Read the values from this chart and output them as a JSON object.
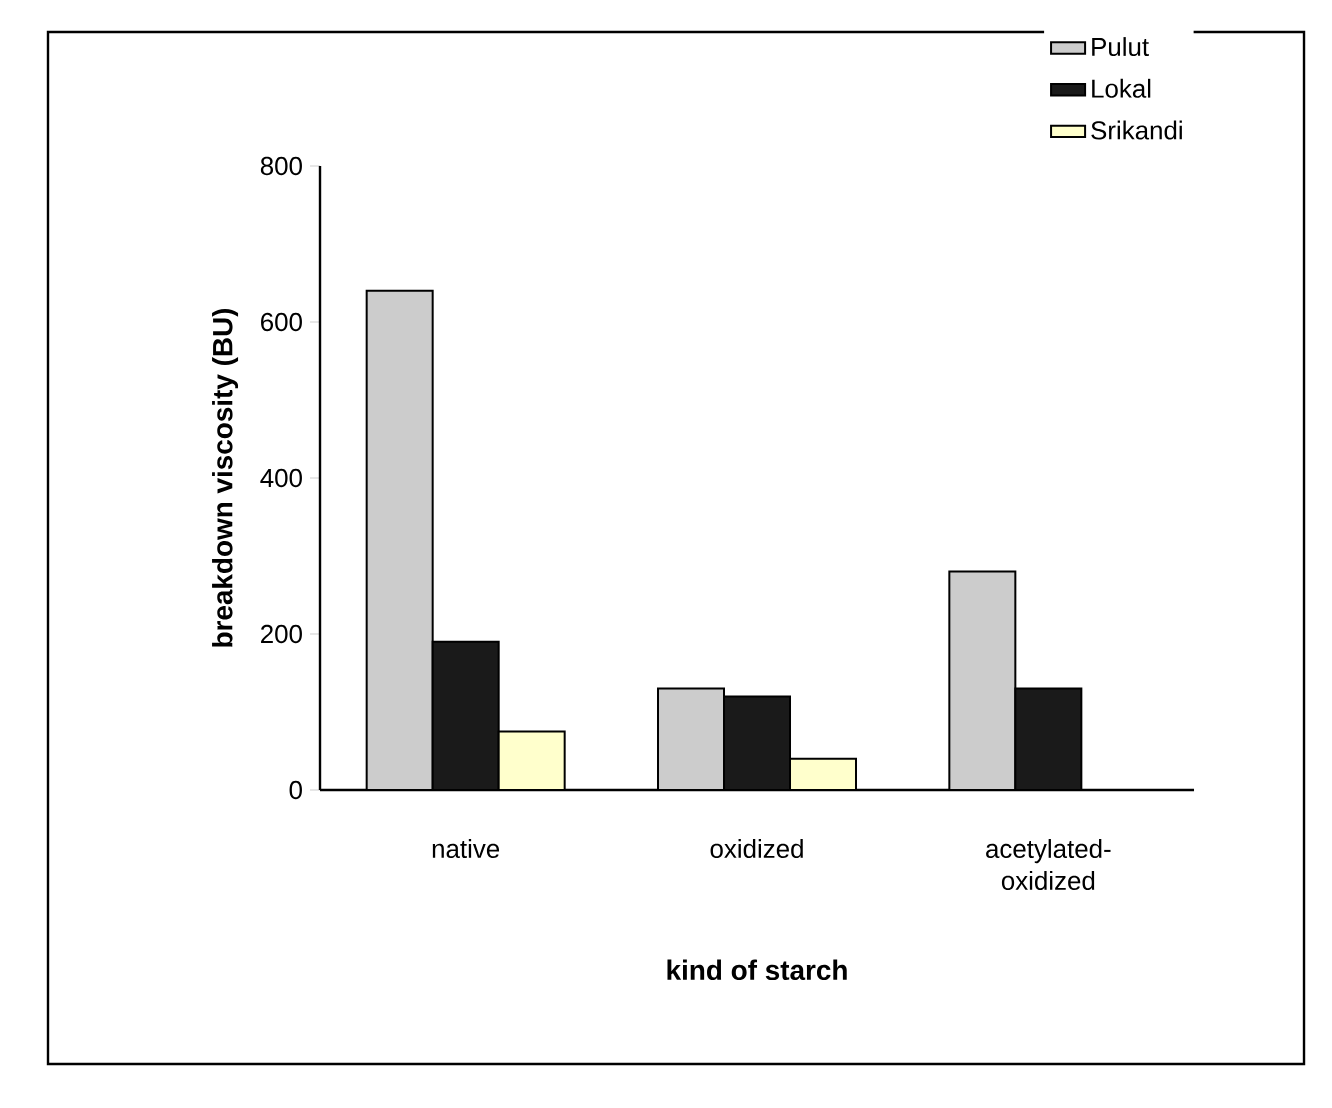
{
  "chart_data": {
    "type": "bar",
    "xlabel": "kind of starch",
    "ylabel": "breakdown viscosity (BU)",
    "categories": [
      "native",
      "oxidized",
      "acetylated-oxidized"
    ],
    "series": [
      {
        "name": "Pulut",
        "color": "#cccccc",
        "values": [
          640,
          130,
          280
        ]
      },
      {
        "name": "Lokal",
        "color": "#1a1a1a",
        "values": [
          190,
          120,
          130
        ]
      },
      {
        "name": "Srikandi",
        "color": "#ffffcc",
        "values": [
          75,
          40,
          null
        ]
      }
    ],
    "ylim": [
      0,
      800
    ],
    "yticks": [
      0,
      200,
      400,
      600,
      800
    ],
    "legend": "top right"
  }
}
